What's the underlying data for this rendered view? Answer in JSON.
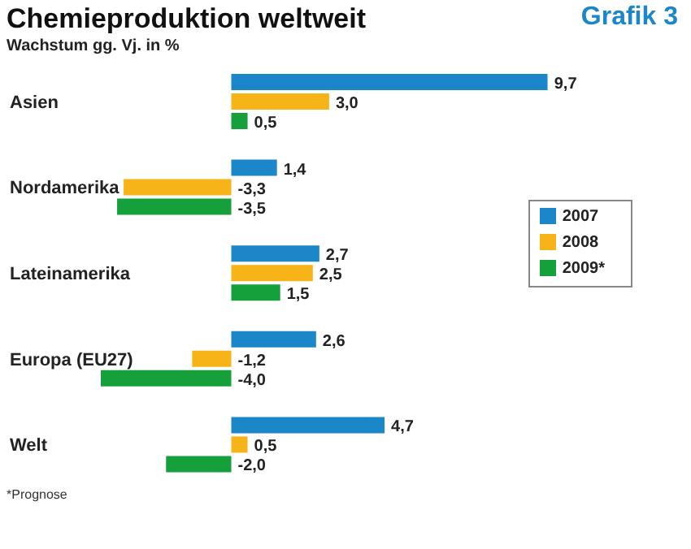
{
  "chart_data": {
    "type": "bar",
    "orientation": "horizontal",
    "title": "Chemieproduktion weltweit",
    "subtitle": "Wachstum gg. Vj. in %",
    "annotations": [
      "Grafik 3",
      "*Prognose"
    ],
    "categories": [
      "Asien",
      "Nordamerika",
      "Lateinamerika",
      "Europa (EU27)",
      "Welt"
    ],
    "tick_labels": "y",
    "legend": "right",
    "grid": false,
    "series": [
      {
        "name": "2007",
        "color": "#1b87c9",
        "values": [
          9.7,
          1.4,
          2.7,
          2.6,
          4.7
        ],
        "value_labels": [
          "9,7",
          "1,4",
          "2,7",
          "2,6",
          "4,7"
        ]
      },
      {
        "name": "2008",
        "color": "#f7b418",
        "values": [
          3.0,
          -3.3,
          2.5,
          -1.2,
          0.5
        ],
        "value_labels": [
          "3,0",
          "-3,3",
          "2,5",
          "-1,2",
          "0,5"
        ]
      },
      {
        "name": "2009*",
        "color": "#16a03c",
        "values": [
          0.5,
          -3.5,
          1.5,
          -4.0,
          -2.0
        ],
        "value_labels": [
          "0,5",
          "-3,5",
          "1,5",
          "-4,0",
          "-2,0"
        ]
      }
    ]
  }
}
